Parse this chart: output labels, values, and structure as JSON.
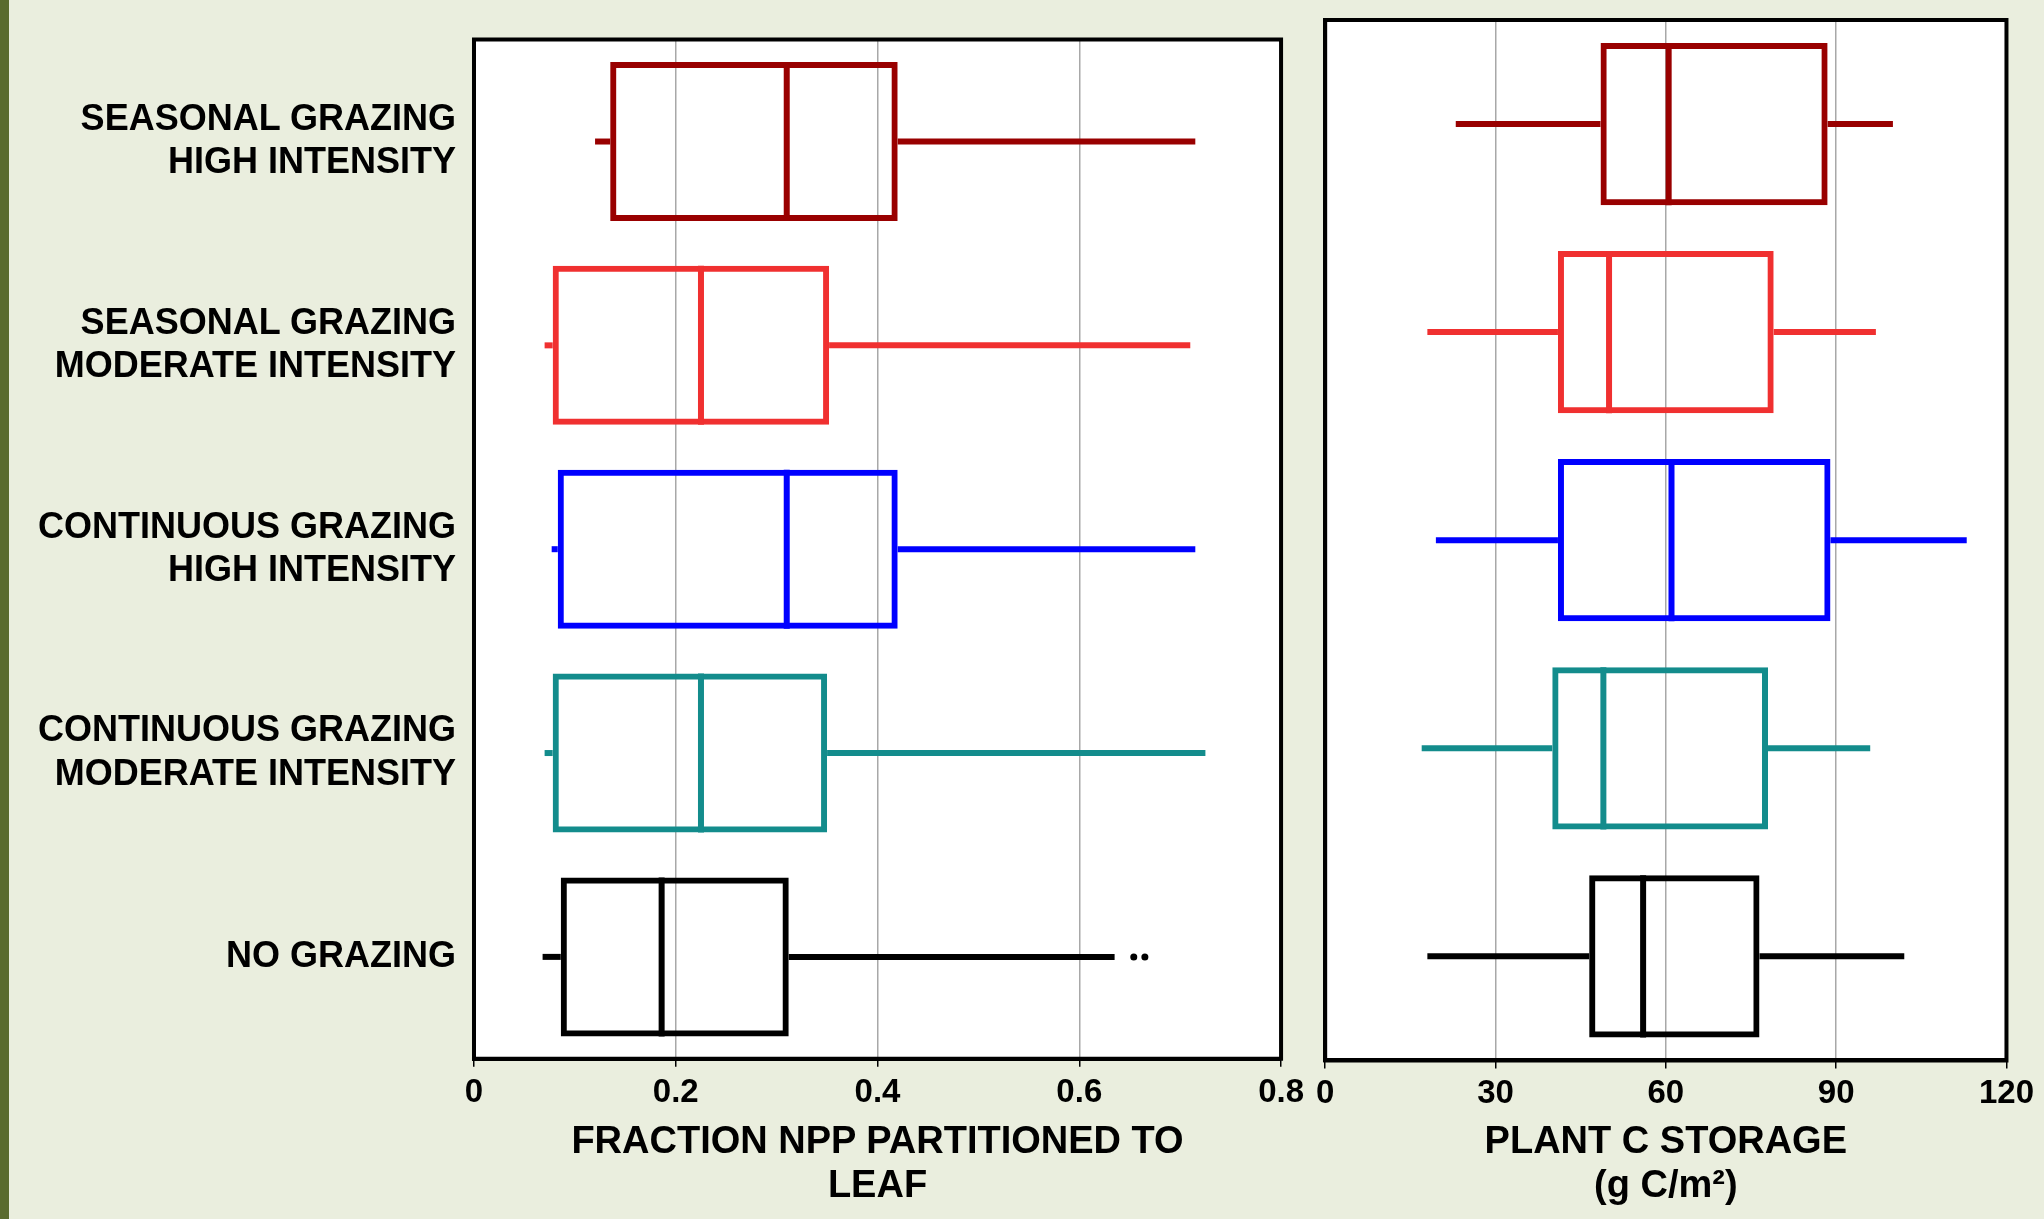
{
  "chart_data": [
    {
      "type": "box",
      "orientation": "horizontal",
      "categories": [
        "SEASONAL GRAZING HIGH INTENSITY",
        "SEASONAL GRAZING MODERATE INTENSITY",
        "CONTINUOUS GRAZING HIGH INTENSITY",
        "CONTINUOUS GRAZING MODERATE INTENSITY",
        "NO GRAZING"
      ],
      "colors": [
        "#990000",
        "#f03030",
        "#0000ff",
        "#138c8c",
        "#000000"
      ],
      "boxes": [
        {
          "low": 0.12,
          "q1": 0.135,
          "median": 0.31,
          "q3": 0.42,
          "high": 0.715
        },
        {
          "low": 0.07,
          "q1": 0.078,
          "median": 0.225,
          "q3": 0.352,
          "high": 0.71
        },
        {
          "low": 0.077,
          "q1": 0.083,
          "median": 0.31,
          "q3": 0.42,
          "high": 0.715
        },
        {
          "low": 0.07,
          "q1": 0.078,
          "median": 0.225,
          "q3": 0.35,
          "high": 0.725
        },
        {
          "low": 0.068,
          "q1": 0.086,
          "median": 0.186,
          "q3": 0.312,
          "high": 0.635,
          "outliers": [
            0.654,
            0.665
          ]
        }
      ],
      "xlim": [
        0,
        0.8
      ],
      "xticks": [
        0,
        0.2,
        0.4,
        0.6,
        0.8
      ],
      "xlabel": "FRACTION NPP PARTITIONED TO LEAF",
      "grid": "x"
    },
    {
      "type": "box",
      "orientation": "horizontal",
      "categories": [
        null,
        null,
        null,
        null,
        null
      ],
      "colors": [
        "#990000",
        "#f03030",
        "#0000ff",
        "#138c8c",
        "#000000"
      ],
      "boxes": [
        {
          "low": 23,
          "q1": 48.5,
          "median": 60.5,
          "q3": 88.5,
          "high": 100
        },
        {
          "low": 18,
          "q1": 41,
          "median": 50,
          "q3": 79,
          "high": 97
        },
        {
          "low": 19.5,
          "q1": 41,
          "median": 61,
          "q3": 89,
          "high": 113
        },
        {
          "low": 17,
          "q1": 40,
          "median": 49,
          "q3": 78,
          "high": 96
        },
        {
          "low": 18,
          "q1": 46.5,
          "median": 56,
          "q3": 76.5,
          "high": 102
        }
      ],
      "xlim": [
        0,
        120
      ],
      "xticks": [
        0,
        30,
        60,
        90,
        120
      ],
      "xlabel": "PLANT C STORAGE (g C/m²)",
      "grid": "x",
      "tick_labels": "x"
    }
  ]
}
